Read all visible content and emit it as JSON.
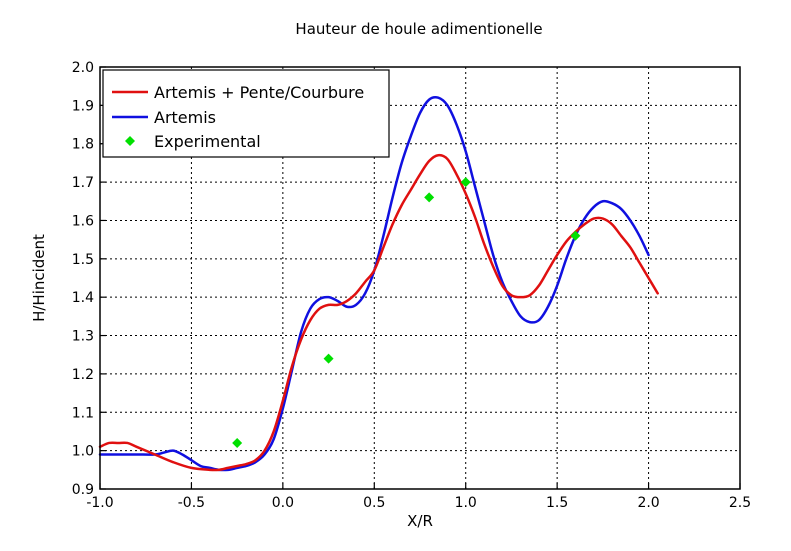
{
  "chart_data": {
    "type": "line",
    "title": "Hauteur de houle adimentionelle",
    "xlabel": "X/R",
    "ylabel": "H/Hincident",
    "xlim": [
      -1.0,
      2.5
    ],
    "ylim": [
      0.9,
      2.0
    ],
    "xticks": [
      -1.0,
      -0.5,
      0.0,
      0.5,
      1.0,
      1.5,
      2.0,
      2.5
    ],
    "yticks": [
      0.9,
      1.0,
      1.1,
      1.2,
      1.3,
      1.4,
      1.5,
      1.6,
      1.7,
      1.8,
      1.9,
      2.0
    ],
    "xtick_labels": [
      "-1.0",
      "-0.5",
      "0.0",
      "0.5",
      "1.0",
      "1.5",
      "2.0",
      "2.5"
    ],
    "ytick_labels": [
      "0.9",
      "1.0",
      "1.1",
      "1.2",
      "1.3",
      "1.4",
      "1.5",
      "1.6",
      "1.7",
      "1.8",
      "1.9",
      "2.0"
    ],
    "grid": true,
    "legend_position": "top-left",
    "series": [
      {
        "name": "Artemis + Pente/Courbure",
        "kind": "line",
        "color": "#e01010",
        "x": [
          -1.0,
          -0.95,
          -0.9,
          -0.85,
          -0.8,
          -0.7,
          -0.6,
          -0.5,
          -0.4,
          -0.35,
          -0.3,
          -0.25,
          -0.2,
          -0.15,
          -0.1,
          -0.05,
          0.0,
          0.05,
          0.1,
          0.15,
          0.2,
          0.25,
          0.3,
          0.35,
          0.4,
          0.45,
          0.5,
          0.55,
          0.6,
          0.65,
          0.7,
          0.75,
          0.8,
          0.85,
          0.9,
          0.95,
          1.0,
          1.05,
          1.1,
          1.15,
          1.2,
          1.25,
          1.3,
          1.35,
          1.4,
          1.45,
          1.5,
          1.55,
          1.6,
          1.65,
          1.7,
          1.75,
          1.8,
          1.85,
          1.9,
          1.95,
          2.0,
          2.05
        ],
        "y": [
          1.01,
          1.02,
          1.02,
          1.02,
          1.01,
          0.99,
          0.97,
          0.955,
          0.95,
          0.95,
          0.955,
          0.96,
          0.965,
          0.975,
          1.0,
          1.05,
          1.13,
          1.22,
          1.29,
          1.34,
          1.37,
          1.38,
          1.38,
          1.39,
          1.41,
          1.44,
          1.47,
          1.53,
          1.59,
          1.64,
          1.68,
          1.72,
          1.755,
          1.77,
          1.76,
          1.72,
          1.67,
          1.61,
          1.54,
          1.48,
          1.43,
          1.405,
          1.4,
          1.405,
          1.43,
          1.47,
          1.51,
          1.545,
          1.57,
          1.59,
          1.605,
          1.605,
          1.59,
          1.56,
          1.53,
          1.49,
          1.45,
          1.41
        ]
      },
      {
        "name": "Artemis",
        "kind": "line",
        "color": "#1010e0",
        "x": [
          -1.0,
          -0.9,
          -0.8,
          -0.7,
          -0.65,
          -0.6,
          -0.55,
          -0.5,
          -0.45,
          -0.4,
          -0.35,
          -0.3,
          -0.25,
          -0.2,
          -0.15,
          -0.1,
          -0.05,
          0.0,
          0.05,
          0.1,
          0.15,
          0.2,
          0.25,
          0.3,
          0.35,
          0.4,
          0.45,
          0.5,
          0.55,
          0.6,
          0.65,
          0.7,
          0.75,
          0.8,
          0.85,
          0.9,
          0.95,
          1.0,
          1.05,
          1.1,
          1.15,
          1.2,
          1.25,
          1.3,
          1.35,
          1.4,
          1.45,
          1.5,
          1.55,
          1.6,
          1.65,
          1.7,
          1.75,
          1.8,
          1.85,
          1.9,
          1.95,
          2.0
        ],
        "y": [
          0.99,
          0.99,
          0.99,
          0.99,
          0.995,
          1.0,
          0.99,
          0.975,
          0.96,
          0.955,
          0.95,
          0.95,
          0.955,
          0.96,
          0.97,
          0.99,
          1.03,
          1.11,
          1.21,
          1.31,
          1.37,
          1.395,
          1.4,
          1.39,
          1.375,
          1.38,
          1.41,
          1.47,
          1.56,
          1.66,
          1.75,
          1.82,
          1.88,
          1.915,
          1.92,
          1.9,
          1.85,
          1.78,
          1.69,
          1.6,
          1.51,
          1.44,
          1.39,
          1.35,
          1.335,
          1.34,
          1.375,
          1.43,
          1.5,
          1.56,
          1.605,
          1.635,
          1.65,
          1.645,
          1.63,
          1.6,
          1.56,
          1.51
        ]
      },
      {
        "name": "Experimental",
        "kind": "scatter",
        "color": "#00e000",
        "x": [
          -0.25,
          0.25,
          0.8,
          1.0,
          1.6
        ],
        "y": [
          1.02,
          1.24,
          1.66,
          1.7,
          1.56
        ]
      }
    ]
  }
}
